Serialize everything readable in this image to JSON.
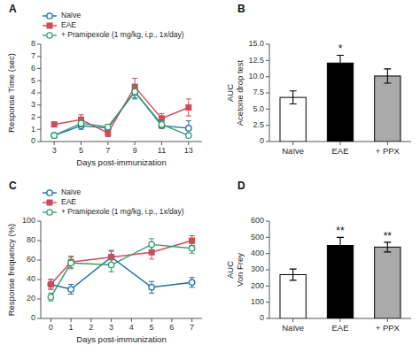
{
  "chart_data": [
    {
      "type": "line",
      "title": "A",
      "xlabel": "Days post-immunization",
      "ylabel": "Response Time (sec)",
      "xlim": [
        2,
        14
      ],
      "ylim": [
        0,
        8
      ],
      "xticks": [
        3,
        5,
        7,
        9,
        11,
        13
      ],
      "yticks": [
        0,
        1,
        2,
        3,
        4,
        5,
        6,
        7,
        8
      ],
      "grid": false,
      "legend": "top",
      "x": [
        3,
        5,
        7,
        9,
        11,
        13
      ],
      "series": [
        {
          "name": "Naïve",
          "marker": "circle",
          "color": "#1b6ca8",
          "values": [
            0.5,
            1.3,
            1.1,
            4.1,
            1.3,
            1.1
          ],
          "errors": [
            0.2,
            0.3,
            0.2,
            0.6,
            0.2,
            0.6
          ]
        },
        {
          "name": "EAE",
          "marker": "square",
          "color": "#d1495b",
          "values": [
            1.4,
            1.8,
            0.7,
            4.5,
            1.9,
            2.8
          ],
          "errors": [
            0.2,
            0.4,
            0.3,
            0.7,
            0.4,
            0.7
          ]
        },
        {
          "name": "+ Pramipexole (1 mg/kg, i.p., 1x/day)",
          "marker": "circle",
          "color": "#2e9e6b",
          "values": [
            0.5,
            1.5,
            1.2,
            4.1,
            1.4,
            0.5
          ],
          "errors": [
            0.15,
            0.3,
            0.2,
            0.5,
            0.3,
            0.15
          ]
        }
      ]
    },
    {
      "type": "bar",
      "title": "B",
      "ylabel": "AUC\nAcetone drop test",
      "ylim": [
        0,
        15
      ],
      "yticks": [
        0,
        2.5,
        {
          "value": 5,
          "label": "5.0"
        },
        7.5,
        {
          "value": 10,
          "label": "10.0"
        },
        12.5,
        {
          "value": 15,
          "label": "15.0"
        }
      ],
      "grid": false,
      "categories": [
        "Naïve",
        "EAE",
        "+ PPX"
      ],
      "values": [
        6.8,
        12.1,
        10.1
      ],
      "errors": [
        1.0,
        1.2,
        1.1
      ],
      "colors": [
        "#ffffff",
        "#000000",
        "#aaaaaa"
      ],
      "annotations": [
        {
          "text": "*",
          "category": "EAE"
        }
      ]
    },
    {
      "type": "line",
      "title": "C",
      "xlabel": "Days post-immunization",
      "ylabel": "Response frequency (%)",
      "xlim": [
        -0.5,
        7.5
      ],
      "ylim": [
        0,
        100
      ],
      "xticks": [
        0,
        1,
        2,
        3,
        4,
        5,
        6,
        7
      ],
      "yticks": [
        0,
        20,
        40,
        60,
        80,
        100
      ],
      "grid": false,
      "legend": "top",
      "x": [
        0,
        1,
        3,
        5,
        7
      ],
      "series": [
        {
          "name": "Naïve",
          "marker": "circle",
          "color": "#1b6ca8",
          "values": [
            35,
            30,
            63,
            32,
            37
          ],
          "errors": [
            5,
            5,
            7,
            6,
            5
          ]
        },
        {
          "name": "EAE",
          "marker": "square",
          "color": "#d1495b",
          "values": [
            35,
            58,
            63,
            68,
            80
          ],
          "errors": [
            5,
            6,
            6,
            7,
            5
          ]
        },
        {
          "name": "+ Pramipexole (1 mg/kg, i.p., 1x/day)",
          "marker": "circle",
          "color": "#2e9e6b",
          "values": [
            22,
            57,
            55,
            76,
            72
          ],
          "errors": [
            4,
            6,
            7,
            6,
            5
          ]
        }
      ]
    },
    {
      "type": "bar",
      "title": "D",
      "ylabel": "AUC\nVon Frey",
      "ylim": [
        0,
        600
      ],
      "yticks": [
        0,
        100,
        200,
        300,
        400,
        500,
        600
      ],
      "grid": false,
      "categories": [
        "Naïve",
        "EAE",
        "+ PPX"
      ],
      "values": [
        270,
        450,
        440
      ],
      "errors": [
        35,
        50,
        30
      ],
      "colors": [
        "#ffffff",
        "#000000",
        "#aaaaaa"
      ],
      "annotations": [
        {
          "text": "**",
          "category": "EAE"
        },
        {
          "text": "**",
          "category": "+ PPX"
        }
      ]
    }
  ]
}
